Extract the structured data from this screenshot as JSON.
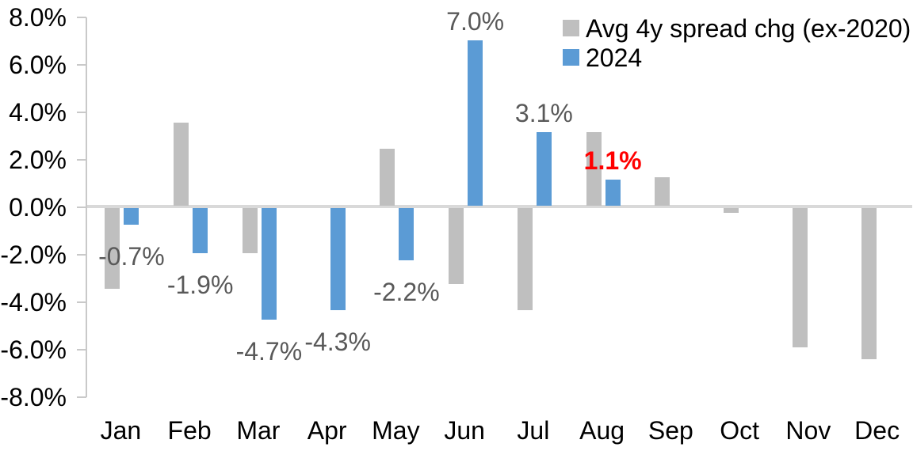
{
  "chart_data": {
    "type": "bar",
    "title": "",
    "xlabel": "",
    "ylabel": "",
    "categories": [
      "Jan",
      "Feb",
      "Mar",
      "Apr",
      "May",
      "Jun",
      "Jul",
      "Aug",
      "Sep",
      "Oct",
      "Nov",
      "Dec"
    ],
    "series": [
      {
        "name": "Avg 4y spread chg (ex-2020)",
        "color": "#BFBFBF",
        "values": [
          -3.4,
          3.5,
          -1.9,
          0.0,
          2.4,
          -3.2,
          -4.3,
          3.1,
          1.2,
          -0.2,
          -5.9,
          -6.4
        ]
      },
      {
        "name": "2024",
        "color": "#5B9BD5",
        "values": [
          -0.7,
          -1.9,
          -4.7,
          -4.3,
          -2.2,
          7.0,
          3.1,
          1.1,
          null,
          null,
          null,
          null
        ]
      }
    ],
    "data_labels": [
      {
        "month": "Jan",
        "text": "-0.7%",
        "color": "#595959",
        "bold": false
      },
      {
        "month": "Feb",
        "text": "-1.9%",
        "color": "#595959",
        "bold": false
      },
      {
        "month": "Mar",
        "text": "-4.7%",
        "color": "#595959",
        "bold": false
      },
      {
        "month": "Apr",
        "text": "-4.3%",
        "color": "#595959",
        "bold": false
      },
      {
        "month": "May",
        "text": "-2.2%",
        "color": "#595959",
        "bold": false
      },
      {
        "month": "Jun",
        "text": "7.0%",
        "color": "#595959",
        "bold": false
      },
      {
        "month": "Jul",
        "text": "3.1%",
        "color": "#595959",
        "bold": false
      },
      {
        "month": "Aug",
        "text": "1.1%",
        "color": "#FF0000",
        "bold": true
      }
    ],
    "y_tick_labels": [
      "8.0%",
      "6.0%",
      "4.0%",
      "2.0%",
      "0.0%",
      "-2.0%",
      "-4.0%",
      "-6.0%",
      "-8.0%"
    ],
    "ylim": [
      -8,
      8
    ],
    "y_tick_step": 2,
    "grid": "zero-baseline-only",
    "legend_position": "top-right"
  },
  "colors": {
    "background": "#FFFFFF",
    "axis_line": "#C9C9C9",
    "zero_line": "#D9D9D9",
    "axis_text": "#000000",
    "bar_gray": "#BFBFBF",
    "bar_blue": "#5B9BD5",
    "label_gray": "#595959",
    "label_red": "#FF0000"
  }
}
